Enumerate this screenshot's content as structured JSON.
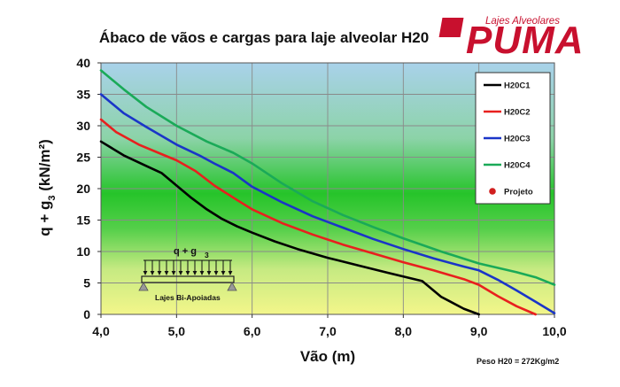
{
  "logo": {
    "tagline": "Lajes Alveolares",
    "brand": "PUMA"
  },
  "inset": {
    "load_label": "q + g",
    "load_sub": "3",
    "support_label": "Lajes Bi-Apoiadas"
  },
  "footnote": "Peso H20  = 272Kg/m2",
  "chart_data": {
    "type": "line",
    "title": "Ábaco de vãos e cargas para laje alveolar H20",
    "xlabel": "Vão (m)",
    "ylabel": {
      "main": "q + g",
      "sub": "3",
      "unit": " (kN/m²)"
    },
    "xlim": [
      4.0,
      10.0
    ],
    "ylim": [
      0,
      40
    ],
    "x_ticks": [
      4.0,
      5.0,
      6.0,
      7.0,
      8.0,
      9.0,
      10.0
    ],
    "x_tick_labels": [
      "4,0",
      "5,0",
      "6,0",
      "7,0",
      "8,0",
      "9,0",
      "10,0"
    ],
    "y_ticks": [
      0,
      5,
      10,
      15,
      20,
      25,
      30,
      35,
      40
    ],
    "y_tick_labels": [
      "0",
      "5",
      "10",
      "15",
      "20",
      "25",
      "30",
      "35",
      "40"
    ],
    "grid": true,
    "legend_position": "top-right",
    "series": [
      {
        "name": "H20C1",
        "color": "#000000",
        "x": [
          4.0,
          4.3,
          4.6,
          4.8,
          5.0,
          5.2,
          5.4,
          5.6,
          5.8,
          6.0,
          6.3,
          6.6,
          7.0,
          7.4,
          7.8,
          8.25,
          8.5,
          8.8,
          9.0
        ],
        "y": [
          27.5,
          25.3,
          23.6,
          22.5,
          20.5,
          18.5,
          16.7,
          15.2,
          14.0,
          13.0,
          11.6,
          10.4,
          9.0,
          7.8,
          6.6,
          5.3,
          2.8,
          0.9,
          0.0
        ]
      },
      {
        "name": "H20C2",
        "color": "#e8201e",
        "x": [
          4.0,
          4.2,
          4.5,
          4.8,
          5.0,
          5.25,
          5.5,
          5.8,
          6.0,
          6.4,
          6.8,
          7.2,
          7.6,
          8.0,
          8.4,
          8.8,
          9.0,
          9.25,
          9.5,
          9.75
        ],
        "y": [
          31.0,
          29.0,
          27.0,
          25.5,
          24.5,
          22.8,
          20.5,
          18.2,
          16.7,
          14.5,
          12.7,
          11.1,
          9.7,
          8.3,
          7.0,
          5.6,
          4.7,
          2.9,
          1.3,
          0.0
        ]
      },
      {
        "name": "H20C3",
        "color": "#1a35c8",
        "x": [
          4.0,
          4.3,
          4.6,
          5.0,
          5.3,
          5.5,
          5.75,
          6.0,
          6.4,
          6.8,
          7.2,
          7.6,
          8.0,
          8.4,
          8.8,
          9.0,
          9.25,
          9.5,
          9.75,
          10.0
        ],
        "y": [
          35.0,
          32.0,
          29.8,
          27.0,
          25.3,
          24.0,
          22.5,
          20.3,
          17.8,
          15.6,
          13.8,
          12.0,
          10.4,
          8.9,
          7.6,
          7.0,
          5.5,
          3.8,
          2.0,
          0.2
        ]
      },
      {
        "name": "H20C4",
        "color": "#1aaa58",
        "x": [
          4.0,
          4.3,
          4.6,
          5.0,
          5.4,
          5.75,
          6.0,
          6.4,
          6.8,
          7.2,
          7.6,
          8.0,
          8.5,
          9.0,
          9.5,
          9.75,
          10.0
        ],
        "y": [
          38.8,
          35.8,
          33.0,
          30.0,
          27.5,
          25.7,
          24.0,
          20.8,
          18.0,
          15.8,
          13.9,
          12.1,
          10.0,
          8.1,
          6.7,
          5.9,
          4.7
        ]
      }
    ],
    "points": [
      {
        "name": "Projeto",
        "color": "#d11f1f",
        "x": [],
        "y": []
      }
    ]
  }
}
